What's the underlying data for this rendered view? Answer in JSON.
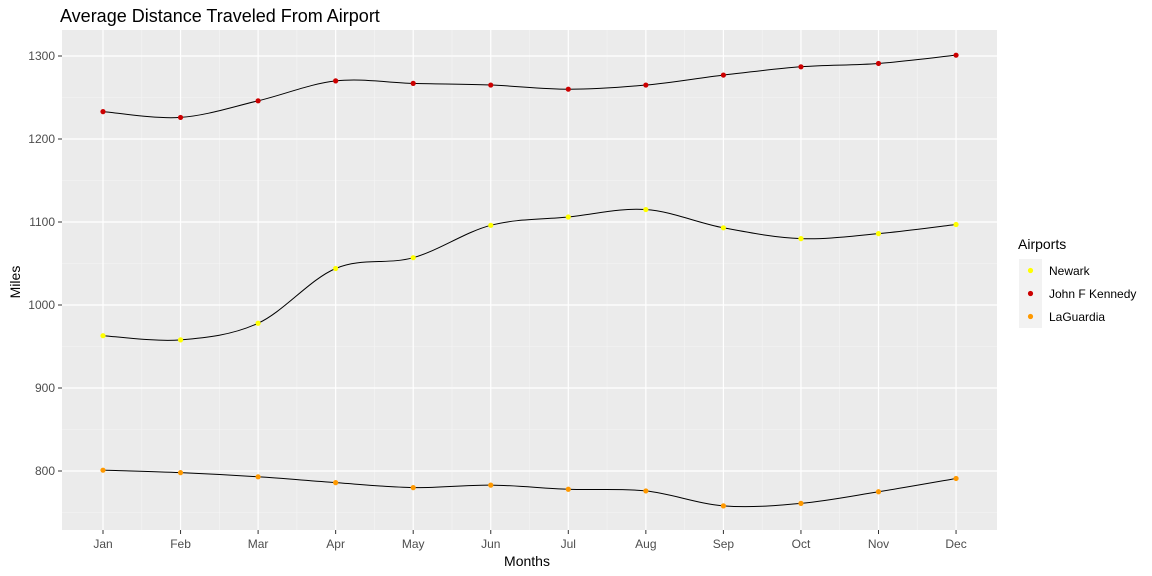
{
  "chart_data": {
    "type": "line",
    "title": "Average Distance Traveled From Airport",
    "xlabel": "Months",
    "ylabel": "Miles",
    "categories": [
      "Jan",
      "Feb",
      "Mar",
      "Apr",
      "May",
      "Jun",
      "Jul",
      "Aug",
      "Sep",
      "Oct",
      "Nov",
      "Dec"
    ],
    "ylim": [
      735,
      1310
    ],
    "yticks": [
      800,
      900,
      1000,
      1100,
      1200,
      1300
    ],
    "grid": true,
    "legend": {
      "title": "Airports",
      "position": "right"
    },
    "line_color": "#000000",
    "panel_color": "#ebebeb",
    "series": [
      {
        "name": "Newark",
        "color": "#ffff00",
        "values": [
          963,
          958,
          978,
          1044,
          1057,
          1096,
          1106,
          1115,
          1093,
          1080,
          1086,
          1097
        ]
      },
      {
        "name": "John F Kennedy",
        "color": "#cc0000",
        "values": [
          1233,
          1226,
          1246,
          1270,
          1267,
          1265,
          1260,
          1265,
          1277,
          1287,
          1291,
          1301
        ]
      },
      {
        "name": "LaGuardia",
        "color": "#ff9900",
        "values": [
          801,
          798,
          793,
          786,
          780,
          783,
          778,
          776,
          758,
          761,
          775,
          791
        ]
      }
    ]
  }
}
